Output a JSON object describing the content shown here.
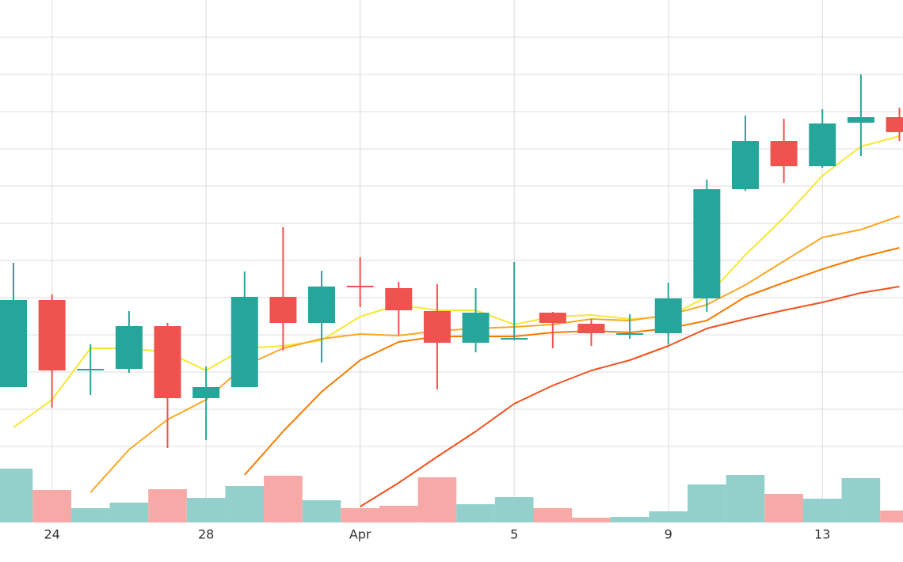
{
  "chart_data": {
    "type": "candlestick",
    "categories": [
      null,
      "24",
      null,
      null,
      null,
      "28",
      null,
      null,
      null,
      "Apr",
      null,
      null,
      null,
      "5",
      null,
      null,
      null,
      "9",
      null,
      null,
      null,
      "13",
      null,
      null
    ],
    "open": [
      211,
      321,
      232,
      234,
      288,
      197,
      211,
      325,
      292,
      339,
      336,
      307,
      267,
      271,
      305,
      291,
      277,
      279,
      323,
      461,
      522,
      490,
      545,
      552
    ],
    "high": [
      368,
      328,
      265,
      307,
      292,
      237,
      357,
      413,
      358,
      375,
      344,
      341,
      336,
      369,
      306,
      297,
      303,
      343,
      473,
      554,
      550,
      562,
      606,
      564
    ],
    "low": [
      211,
      185,
      201,
      229,
      134,
      144,
      211,
      257,
      242,
      312,
      277,
      208,
      255,
      270,
      260,
      263,
      272,
      265,
      306,
      459,
      469,
      488,
      503,
      522
    ],
    "close": [
      321,
      232,
      234,
      288,
      197,
      211,
      325,
      292,
      338,
      337,
      308,
      267,
      305,
      273,
      292,
      279,
      279,
      323,
      461,
      522,
      490,
      544,
      552,
      533
    ],
    "up_color": "#26a69a",
    "down_color": "#ef5350",
    "ylim": [
      40,
      700
    ],
    "yticks": [
      136,
      183,
      230,
      277,
      324,
      371,
      418,
      465,
      512,
      559,
      606,
      653
    ],
    "grid": true,
    "series": [
      {
        "color": "#f7e733",
        "values": [
          160,
          195,
          260,
          260,
          255,
          232,
          260,
          263,
          270,
          300,
          315,
          308,
          308,
          290,
          300,
          302,
          297,
          300,
          325,
          378,
          425,
          478,
          515,
          528
        ]
      },
      {
        "color": "#f9a825",
        "values": [
          null,
          null,
          78,
          132,
          170,
          195,
          238,
          260,
          272,
          278,
          276,
          282,
          285,
          287,
          290,
          297,
          295,
          302,
          315,
          340,
          370,
          400,
          410,
          427
        ]
      },
      {
        "color": "#f57c00",
        "values": [
          null,
          null,
          null,
          null,
          null,
          null,
          100,
          155,
          205,
          245,
          268,
          275,
          275,
          275,
          280,
          282,
          280,
          285,
          295,
          325,
          343,
          360,
          375,
          387
        ]
      },
      {
        "color": "#f4511e",
        "values": [
          null,
          null,
          null,
          null,
          null,
          null,
          null,
          null,
          null,
          60,
          90,
          123,
          155,
          190,
          213,
          232,
          245,
          263,
          285,
          297,
          308,
          318,
          330,
          338
        ]
      }
    ],
    "volume": {
      "values": [
        68,
        41,
        18,
        25,
        42,
        31,
        46,
        59,
        28,
        18,
        21,
        57,
        23,
        32,
        18,
        6,
        7,
        14,
        48,
        60,
        36,
        30,
        56,
        15
      ],
      "ylim": [
        0,
        100
      ],
      "up_color": "#93d0cc",
      "down_color": "#f6a9a6"
    }
  }
}
